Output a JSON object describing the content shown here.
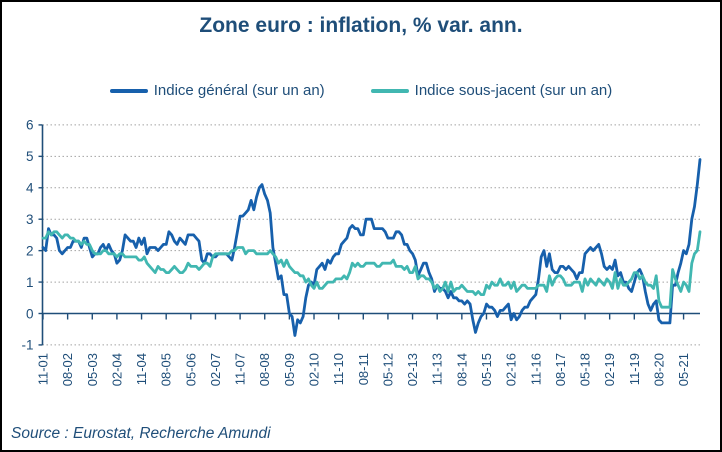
{
  "page": {
    "title": "Zone euro : inflation, % var. ann.",
    "source": "Source : Eurostat, Recherche Amundi"
  },
  "colors": {
    "text": "#1F4E79",
    "axis": "#1F4E79",
    "grid": "#A3A3A3",
    "frame_border": "#000000",
    "general_line": "#1760AC",
    "core_line": "#41B7B1"
  },
  "chart_data": {
    "type": "line",
    "title": "Zone euro : inflation, % var. ann.",
    "x_start": "2001-11",
    "x_end": "2021-11",
    "x_frequency": "monthly",
    "grid": "horizontal-dotted",
    "legend_position": "top",
    "ylim": [
      -1,
      6
    ],
    "y_ticks": [
      6,
      5,
      4,
      3,
      2,
      1,
      0,
      -1
    ],
    "x_tick_interval_months": 9,
    "x_tick_labels": [
      "11-01",
      "08-02",
      "05-03",
      "02-04",
      "11-04",
      "08-05",
      "05-06",
      "02-07",
      "11-07",
      "08-08",
      "05-09",
      "02-10",
      "11-10",
      "08-11",
      "05-12",
      "02-13",
      "11-13",
      "08-14",
      "05-15",
      "02-16",
      "11-16",
      "08-17",
      "05-18",
      "02-19",
      "11-19",
      "08-20",
      "05-21"
    ],
    "series": [
      {
        "name": "Indice général (sur un an)",
        "color": "#1760AC",
        "values": [
          2.1,
          2.0,
          2.7,
          2.5,
          2.5,
          2.4,
          2.0,
          1.9,
          2.0,
          2.1,
          2.1,
          2.3,
          2.3,
          2.3,
          2.1,
          2.4,
          2.4,
          2.1,
          1.8,
          1.9,
          1.9,
          2.1,
          2.2,
          2.0,
          2.2,
          2.0,
          1.9,
          1.6,
          1.7,
          2.0,
          2.5,
          2.4,
          2.3,
          2.3,
          2.1,
          2.4,
          2.2,
          2.4,
          1.9,
          2.1,
          2.1,
          2.1,
          2.0,
          2.1,
          2.2,
          2.2,
          2.6,
          2.5,
          2.3,
          2.2,
          2.4,
          2.3,
          2.2,
          2.5,
          2.5,
          2.5,
          2.4,
          2.3,
          1.7,
          1.6,
          1.9,
          1.9,
          1.8,
          1.8,
          1.9,
          1.9,
          1.9,
          1.9,
          1.8,
          1.7,
          2.1,
          2.6,
          3.1,
          3.1,
          3.2,
          3.3,
          3.6,
          3.3,
          3.7,
          4.0,
          4.1,
          3.8,
          3.6,
          3.2,
          2.1,
          1.6,
          1.1,
          1.2,
          0.6,
          0.6,
          0.0,
          -0.1,
          -0.7,
          -0.2,
          -0.3,
          -0.1,
          0.5,
          0.9,
          1.0,
          0.9,
          1.4,
          1.5,
          1.6,
          1.4,
          1.7,
          1.6,
          1.8,
          1.9,
          1.9,
          2.2,
          2.3,
          2.4,
          2.7,
          2.8,
          2.7,
          2.7,
          2.5,
          2.5,
          3.0,
          3.0,
          3.0,
          2.7,
          2.7,
          2.7,
          2.7,
          2.6,
          2.4,
          2.4,
          2.4,
          2.6,
          2.6,
          2.5,
          2.2,
          2.2,
          2.0,
          1.9,
          1.7,
          1.2,
          1.4,
          1.6,
          1.6,
          1.3,
          1.1,
          0.7,
          0.9,
          0.8,
          0.8,
          0.7,
          0.5,
          0.7,
          0.5,
          0.5,
          0.4,
          0.4,
          0.3,
          0.4,
          0.3,
          -0.2,
          -0.6,
          -0.3,
          -0.1,
          0.0,
          0.3,
          0.2,
          0.2,
          0.1,
          -0.1,
          0.1,
          0.1,
          0.2,
          0.3,
          -0.2,
          0.0,
          -0.2,
          -0.1,
          0.1,
          0.2,
          0.2,
          0.4,
          0.5,
          0.6,
          1.1,
          1.8,
          2.0,
          1.5,
          1.9,
          1.4,
          1.3,
          1.3,
          1.5,
          1.5,
          1.4,
          1.5,
          1.4,
          1.3,
          1.1,
          1.3,
          1.3,
          1.9,
          2.0,
          2.1,
          2.0,
          2.1,
          2.2,
          1.9,
          1.5,
          1.4,
          1.5,
          1.4,
          1.7,
          1.2,
          1.3,
          1.0,
          1.0,
          0.8,
          0.7,
          1.0,
          1.3,
          1.4,
          1.2,
          0.7,
          0.3,
          0.1,
          0.3,
          0.4,
          -0.2,
          -0.3,
          -0.3,
          -0.3,
          -0.3,
          0.9,
          0.9,
          1.3,
          1.6,
          2.0,
          1.9,
          2.2,
          3.0,
          3.4,
          4.1,
          4.9
        ]
      },
      {
        "name": "Indice sous-jacent (sur un an)",
        "color": "#41B7B1",
        "values": [
          2.4,
          2.4,
          2.6,
          2.5,
          2.6,
          2.6,
          2.5,
          2.4,
          2.5,
          2.5,
          2.4,
          2.4,
          2.3,
          2.3,
          2.2,
          2.3,
          2.2,
          2.2,
          2.0,
          1.9,
          1.9,
          1.9,
          2.0,
          2.0,
          1.9,
          1.9,
          1.9,
          1.8,
          1.9,
          1.9,
          1.8,
          1.8,
          1.8,
          1.8,
          1.8,
          1.7,
          1.7,
          1.8,
          1.6,
          1.5,
          1.4,
          1.3,
          1.5,
          1.4,
          1.4,
          1.3,
          1.3,
          1.4,
          1.5,
          1.4,
          1.3,
          1.3,
          1.4,
          1.6,
          1.5,
          1.5,
          1.5,
          1.4,
          1.5,
          1.6,
          1.6,
          1.5,
          1.8,
          1.9,
          1.9,
          1.9,
          1.9,
          1.9,
          1.9,
          2.0,
          2.0,
          2.1,
          2.1,
          2.1,
          1.9,
          2.0,
          2.0,
          2.0,
          1.9,
          1.9,
          1.9,
          1.9,
          1.9,
          2.0,
          1.9,
          1.8,
          1.6,
          1.7,
          1.5,
          1.7,
          1.5,
          1.4,
          1.3,
          1.3,
          1.2,
          1.2,
          1.0,
          1.1,
          0.9,
          0.8,
          1.0,
          0.8,
          0.8,
          0.9,
          1.0,
          1.0,
          1.0,
          1.1,
          1.1,
          1.1,
          1.2,
          1.1,
          1.3,
          1.6,
          1.5,
          1.6,
          1.5,
          1.5,
          1.6,
          1.6,
          1.6,
          1.6,
          1.5,
          1.5,
          1.6,
          1.6,
          1.6,
          1.6,
          1.7,
          1.5,
          1.5,
          1.5,
          1.4,
          1.5,
          1.3,
          1.3,
          1.5,
          1.1,
          1.2,
          1.2,
          1.1,
          1.1,
          1.0,
          0.8,
          0.9,
          0.7,
          0.8,
          1.0,
          0.7,
          1.0,
          0.7,
          0.8,
          0.8,
          0.9,
          0.8,
          0.7,
          0.7,
          0.7,
          0.6,
          0.7,
          0.6,
          0.6,
          0.9,
          0.8,
          1.0,
          0.9,
          0.9,
          1.1,
          0.9,
          0.9,
          1.0,
          0.8,
          1.0,
          0.7,
          0.8,
          0.9,
          0.9,
          0.8,
          0.8,
          0.8,
          0.8,
          0.9,
          0.9,
          0.9,
          0.7,
          1.2,
          0.9,
          1.1,
          1.2,
          1.2,
          1.1,
          0.9,
          0.9,
          0.9,
          1.0,
          1.0,
          1.0,
          0.7,
          1.1,
          0.9,
          1.1,
          1.0,
          0.9,
          1.1,
          1.0,
          0.9,
          1.1,
          1.0,
          0.8,
          1.3,
          0.8,
          1.1,
          0.9,
          0.9,
          1.0,
          1.1,
          1.3,
          1.3,
          1.1,
          1.2,
          1.0,
          0.9,
          0.9,
          0.8,
          1.2,
          0.4,
          0.2,
          0.2,
          0.2,
          0.2,
          1.4,
          1.1,
          0.9,
          0.7,
          1.0,
          0.9,
          0.7,
          1.6,
          1.9,
          2.0,
          2.6
        ]
      }
    ]
  }
}
